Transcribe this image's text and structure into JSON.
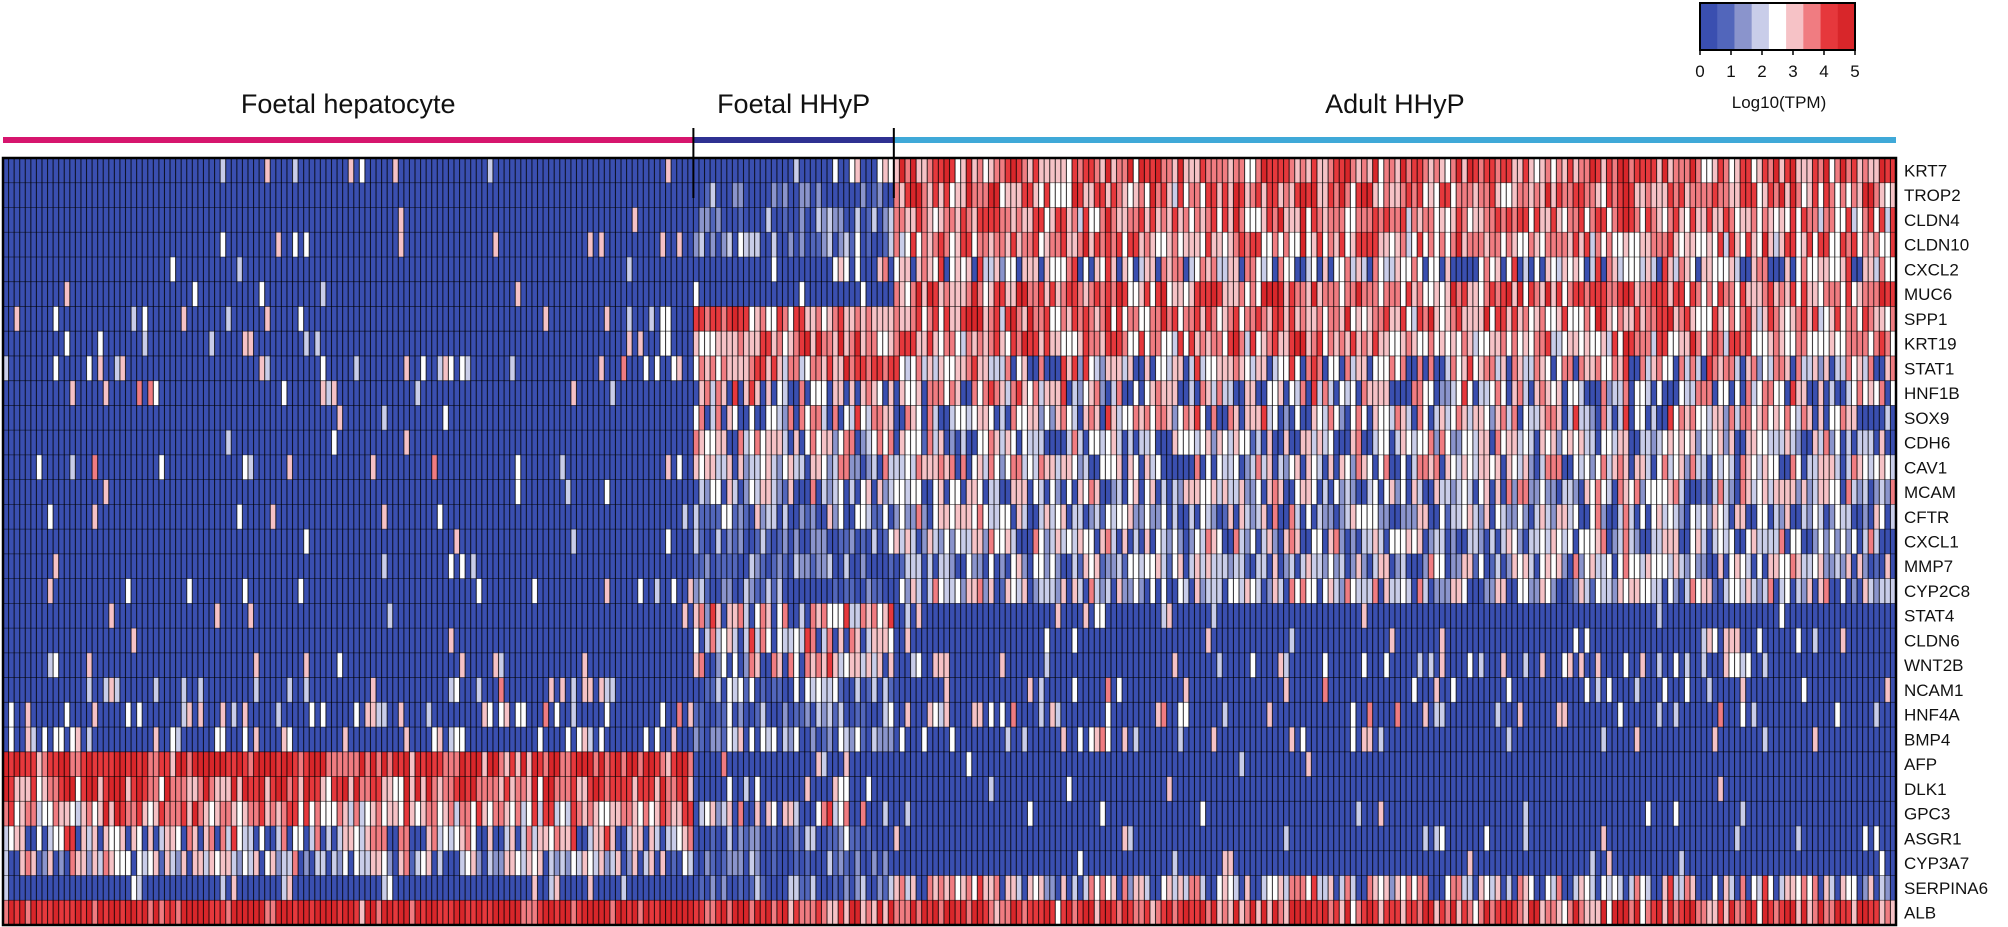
{
  "chart_data": {
    "type": "heatmap",
    "title": "",
    "colorbar": {
      "label": "Log10(TPM)",
      "range": [
        0,
        5
      ],
      "ticks": [
        "0",
        "1",
        "2",
        "3",
        "4",
        "5"
      ],
      "colors": [
        "#3a4fb0",
        "#5266bb",
        "#8a94cc",
        "#c9cde9",
        "#ffffff",
        "#f6c2c6",
        "#f07c81",
        "#e6383c",
        "#d8262a"
      ]
    },
    "groups": [
      {
        "name": "Foetal hepatocyte",
        "color": "#d6156e",
        "n_cells": 124
      },
      {
        "name": "Foetal HHyP",
        "color": "#2e3192",
        "n_cells": 36
      },
      {
        "name": "Adult HHyP",
        "color": "#3fa9d8",
        "n_cells": 180
      }
    ],
    "genes": [
      "KRT7",
      "TROP2",
      "CLDN4",
      "CLDN10",
      "CXCL2",
      "MUC6",
      "SPP1",
      "KRT19",
      "STAT1",
      "HNF1B",
      "SOX9",
      "CDH6",
      "CAV1",
      "MCAM",
      "CFTR",
      "CXCL1",
      "MMP7",
      "CYP2C8",
      "STAT4",
      "CLDN6",
      "WNT2B",
      "NCAM1",
      "HNF4A",
      "BMP4",
      "AFP",
      "DLK1",
      "GPC3",
      "ASGR1",
      "CYP3A7",
      "SERPINA6",
      "ALB"
    ],
    "group_mean_log10_tpm": {
      "Foetal hepatocyte": [
        0.1,
        0.1,
        0.1,
        0.1,
        0.1,
        0.1,
        0.3,
        0.4,
        0.6,
        0.2,
        0.1,
        0.1,
        0.2,
        0.1,
        0.1,
        0.1,
        0.1,
        0.2,
        0.1,
        0.1,
        0.3,
        0.4,
        0.7,
        0.6,
        4.3,
        3.9,
        3.3,
        2.8,
        2.3,
        0.4,
        4.6
      ],
      "Foetal HHyP": [
        0.6,
        0.8,
        0.8,
        0.9,
        0.7,
        0.2,
        3.4,
        3.5,
        3.2,
        2.9,
        2.8,
        2.6,
        2.4,
        2.2,
        1.6,
        1.2,
        0.9,
        1.1,
        2.9,
        2.7,
        2.6,
        1.4,
        1.3,
        1.5,
        0.3,
        0.6,
        2.8,
        0.8,
        0.8,
        0.8,
        3.8
      ],
      "Adult HHyP": [
        3.7,
        3.5,
        3.4,
        3.3,
        2.9,
        3.6,
        3.4,
        3.3,
        2.9,
        2.8,
        2.7,
        2.4,
        2.6,
        2.5,
        2.3,
        2.4,
        2.2,
        2.3,
        0.2,
        0.2,
        0.5,
        0.3,
        0.6,
        0.4,
        0.1,
        0.1,
        0.2,
        0.2,
        0.1,
        2.7,
        4.0
      ]
    }
  }
}
